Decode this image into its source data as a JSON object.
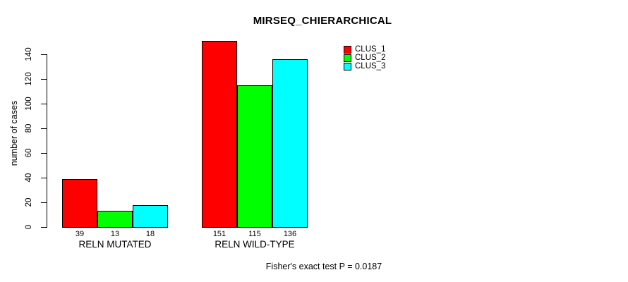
{
  "chart_data": {
    "type": "bar",
    "title": "MIRSEQ_CHIERARCHICAL",
    "xlabel": "",
    "ylabel": "number of cases",
    "categories": [
      "RELN MUTATED",
      "RELN WILD-TYPE"
    ],
    "series": [
      {
        "name": "CLUS_1",
        "color": "#FF0000",
        "values": [
          39,
          151
        ]
      },
      {
        "name": "CLUS_2",
        "color": "#00FF00",
        "values": [
          13,
          115
        ]
      },
      {
        "name": "CLUS_3",
        "color": "#00FFFF",
        "values": [
          18,
          136
        ]
      }
    ],
    "bar_value_labels": [
      [
        "39",
        "13",
        "18"
      ],
      [
        "151",
        "115",
        "136"
      ]
    ],
    "yticks": [
      0,
      20,
      40,
      60,
      80,
      100,
      120,
      140
    ],
    "ylim": [
      0,
      155
    ],
    "grid": false,
    "legend": {
      "position": "top-right",
      "entries": [
        "CLUS_1",
        "CLUS_2",
        "CLUS_3"
      ]
    },
    "annotation": "Fisher's exact test P = 0.0187"
  }
}
